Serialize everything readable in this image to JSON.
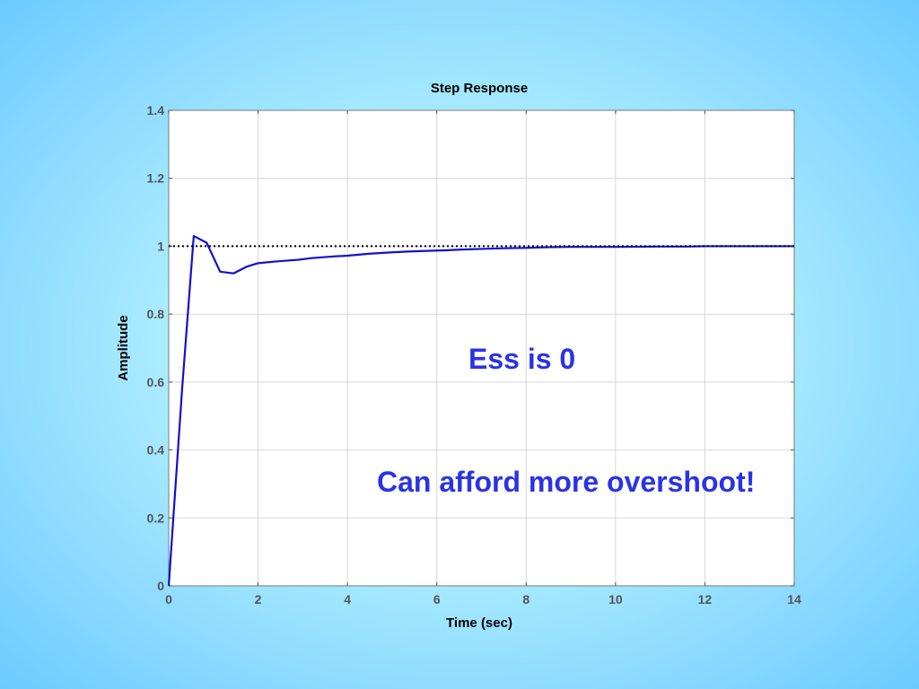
{
  "chart_data": {
    "type": "line",
    "title": "Step Response",
    "xlabel": "Time (sec)",
    "ylabel": "Amplitude",
    "xlim": [
      0,
      14
    ],
    "ylim": [
      0,
      1.4
    ],
    "xticks": [
      "0",
      "2",
      "4",
      "6",
      "8",
      "10",
      "12",
      "14"
    ],
    "yticks": [
      "0",
      "0.2",
      "0.4",
      "0.6",
      "0.8",
      "1",
      "1.2",
      "1.4"
    ],
    "grid": true,
    "series": [
      {
        "style": "solid",
        "color": "#1010d0",
        "x": [
          0,
          0.3,
          0.56,
          0.85,
          1.15,
          1.45,
          1.75,
          2.0,
          2.4,
          2.9,
          3.2,
          3.7,
          4.0,
          4.5,
          5.0,
          5.3,
          5.7,
          6.2,
          6.5,
          7.0,
          7.5,
          8.0,
          8.5,
          9.0,
          10.0,
          11.0,
          11.6,
          12.0,
          13.0,
          14.0
        ],
        "y": [
          0,
          0.58,
          1.03,
          1.01,
          0.925,
          0.92,
          0.94,
          0.95,
          0.955,
          0.96,
          0.965,
          0.97,
          0.972,
          0.978,
          0.982,
          0.984,
          0.986,
          0.988,
          0.99,
          0.992,
          0.994,
          0.995,
          0.997,
          0.998,
          0.998,
          0.999,
          0.999,
          1.0,
          1.0,
          1.0
        ]
      },
      {
        "style": "dotted",
        "color": "#000000",
        "x": [
          0,
          14
        ],
        "y": [
          1,
          1
        ]
      }
    ],
    "annotations": [
      "Ess is 0",
      "Can afford more overshoot!"
    ]
  },
  "colors": {
    "response_line": "#1010d0",
    "annotation_text": "#2b33e6",
    "grid": "#d8d8d8"
  }
}
